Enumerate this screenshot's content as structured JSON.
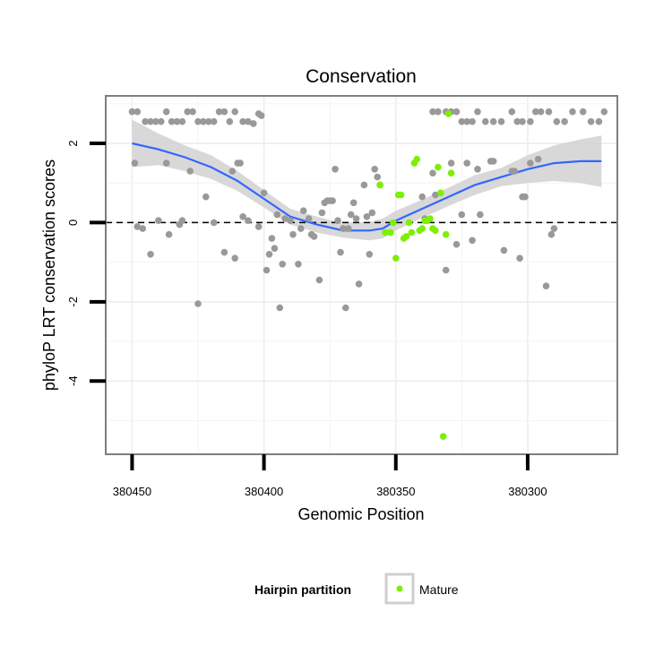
{
  "chart_data": {
    "type": "scatter",
    "title": "Conservation",
    "xlabel": "Genomic Position",
    "ylabel": "phyloP LRT conservation scores",
    "x_reversed": true,
    "xlim": [
      380460,
      380266
    ],
    "ylim": [
      -5.85,
      3.2
    ],
    "x_ticks": [
      380450,
      380400,
      380350,
      380300
    ],
    "x_tick_labels": [
      "380450",
      "380400",
      "380350",
      "380300"
    ],
    "y_ticks": [
      2,
      0,
      -2,
      -4
    ],
    "y_tick_labels": [
      "2",
      "0",
      "-2",
      "-4"
    ],
    "grid": true,
    "reference_line": {
      "y": 0,
      "style": "dashed"
    },
    "legend": {
      "title": "Hairpin partition",
      "position": "bottom",
      "entries": [
        {
          "name": "Mature",
          "color": "#7cf000"
        }
      ]
    },
    "colors": {
      "other": "#999999",
      "mature": "#7cf000",
      "smooth": "#3366ff",
      "ribbon": "#d4d4d4"
    },
    "series": [
      {
        "name": "",
        "color": "#999999",
        "points": [
          [
            380450,
            2.8
          ],
          [
            380448,
            2.8
          ],
          [
            380445,
            2.55
          ],
          [
            380443,
            2.55
          ],
          [
            380441,
            2.55
          ],
          [
            380439,
            2.55
          ],
          [
            380437,
            2.8
          ],
          [
            380435,
            2.55
          ],
          [
            380433,
            2.55
          ],
          [
            380431,
            2.55
          ],
          [
            380429,
            2.8
          ],
          [
            380427,
            2.8
          ],
          [
            380425,
            2.55
          ],
          [
            380423,
            2.55
          ],
          [
            380421,
            2.55
          ],
          [
            380419,
            2.55
          ],
          [
            380417,
            2.8
          ],
          [
            380415,
            2.8
          ],
          [
            380413,
            2.55
          ],
          [
            380411,
            2.8
          ],
          [
            380408,
            2.55
          ],
          [
            380406,
            2.55
          ],
          [
            380404,
            2.5
          ],
          [
            380402,
            2.75
          ],
          [
            380401,
            2.7
          ],
          [
            380336,
            2.8
          ],
          [
            380334,
            2.8
          ],
          [
            380331,
            2.8
          ],
          [
            380329,
            2.8
          ],
          [
            380327,
            2.8
          ],
          [
            380325,
            2.55
          ],
          [
            380323,
            2.55
          ],
          [
            380321,
            2.55
          ],
          [
            380319,
            2.8
          ],
          [
            380316,
            2.55
          ],
          [
            380313,
            2.55
          ],
          [
            380310,
            2.55
          ],
          [
            380306,
            2.8
          ],
          [
            380304,
            2.55
          ],
          [
            380302,
            2.55
          ],
          [
            380299,
            2.55
          ],
          [
            380297,
            2.8
          ],
          [
            380295,
            2.8
          ],
          [
            380292,
            2.8
          ],
          [
            380289,
            2.55
          ],
          [
            380286,
            2.55
          ],
          [
            380283,
            2.8
          ],
          [
            380279,
            2.8
          ],
          [
            380276,
            2.55
          ],
          [
            380273,
            2.55
          ],
          [
            380271,
            2.8
          ],
          [
            380449,
            1.5
          ],
          [
            380448,
            -0.1
          ],
          [
            380446,
            -0.15
          ],
          [
            380443,
            -0.8
          ],
          [
            380440,
            0.05
          ],
          [
            380437,
            1.5
          ],
          [
            380436,
            -0.3
          ],
          [
            380432,
            -0.05
          ],
          [
            380431,
            0.05
          ],
          [
            380428,
            1.3
          ],
          [
            380425,
            -2.05
          ],
          [
            380422,
            0.65
          ],
          [
            380419,
            0.0
          ],
          [
            380415,
            -0.75
          ],
          [
            380412,
            1.3
          ],
          [
            380411,
            -0.9
          ],
          [
            380410,
            1.5
          ],
          [
            380409,
            1.5
          ],
          [
            380408,
            0.15
          ],
          [
            380406,
            0.05
          ],
          [
            380402,
            -0.1
          ],
          [
            380400,
            0.75
          ],
          [
            380399,
            -1.2
          ],
          [
            380398,
            -0.8
          ],
          [
            380397,
            -0.4
          ],
          [
            380396,
            -0.65
          ],
          [
            380395,
            0.2
          ],
          [
            380394,
            -2.15
          ],
          [
            380393,
            -1.05
          ],
          [
            380392,
            0.1
          ],
          [
            380390,
            0.05
          ],
          [
            380389,
            -0.3
          ],
          [
            380387,
            -1.05
          ],
          [
            380386,
            -0.15
          ],
          [
            380385,
            0.3
          ],
          [
            380383,
            0.1
          ],
          [
            380382,
            -0.3
          ],
          [
            380381,
            -0.35
          ],
          [
            380379,
            -1.45
          ],
          [
            380378,
            0.25
          ],
          [
            380377,
            0.5
          ],
          [
            380376,
            0.55
          ],
          [
            380375,
            0.55
          ],
          [
            380374,
            0.55
          ],
          [
            380373,
            1.35
          ],
          [
            380372,
            0.05
          ],
          [
            380371,
            -0.75
          ],
          [
            380370,
            -0.15
          ],
          [
            380369,
            -2.15
          ],
          [
            380368,
            -0.15
          ],
          [
            380367,
            0.2
          ],
          [
            380366,
            0.5
          ],
          [
            380365,
            0.1
          ],
          [
            380364,
            -1.55
          ],
          [
            380362,
            0.95
          ],
          [
            380361,
            0.15
          ],
          [
            380360,
            -0.8
          ],
          [
            380359,
            0.25
          ],
          [
            380358,
            1.35
          ],
          [
            380357,
            1.15
          ],
          [
            380356,
            0.95
          ],
          [
            380340,
            0.65
          ],
          [
            380339,
            0.1
          ],
          [
            380336,
            1.25
          ],
          [
            380335,
            0.7
          ],
          [
            380331,
            -1.2
          ],
          [
            380329,
            1.5
          ],
          [
            380327,
            -0.55
          ],
          [
            380325,
            0.2
          ],
          [
            380323,
            1.5
          ],
          [
            380321,
            -0.45
          ],
          [
            380319,
            1.35
          ],
          [
            380318,
            0.2
          ],
          [
            380314,
            1.55
          ],
          [
            380313,
            1.55
          ],
          [
            380309,
            -0.7
          ],
          [
            380306,
            1.3
          ],
          [
            380305,
            1.3
          ],
          [
            380303,
            -0.9
          ],
          [
            380302,
            0.65
          ],
          [
            380301,
            0.65
          ],
          [
            380299,
            1.5
          ],
          [
            380296,
            1.6
          ],
          [
            380293,
            -1.6
          ],
          [
            380291,
            -0.3
          ],
          [
            380290,
            -0.15
          ]
        ]
      },
      {
        "name": "Mature",
        "color": "#7cf000",
        "points": [
          [
            380356,
            0.95
          ],
          [
            380354,
            -0.25
          ],
          [
            380352,
            -0.25
          ],
          [
            380351,
            0.0
          ],
          [
            380350,
            -0.9
          ],
          [
            380349,
            0.7
          ],
          [
            380348,
            0.7
          ],
          [
            380347,
            -0.4
          ],
          [
            380346,
            -0.35
          ],
          [
            380345,
            0.0
          ],
          [
            380344,
            -0.25
          ],
          [
            380343,
            1.5
          ],
          [
            380342,
            1.6
          ],
          [
            380341,
            -0.2
          ],
          [
            380340,
            -0.15
          ],
          [
            380339,
            0.05
          ],
          [
            380338,
            0.05
          ],
          [
            380337,
            0.1
          ],
          [
            380336,
            -0.15
          ],
          [
            380335,
            -0.2
          ],
          [
            380334,
            1.4
          ],
          [
            380333,
            0.75
          ],
          [
            380332,
            -5.4
          ],
          [
            380331,
            -0.3
          ],
          [
            380330,
            2.75
          ],
          [
            380329,
            1.25
          ]
        ]
      }
    ],
    "smooth": {
      "x": [
        380450,
        380440,
        380430,
        380420,
        380410,
        380400,
        380390,
        380380,
        380370,
        380360,
        380355,
        380350,
        380340,
        380330,
        380320,
        380310,
        380300,
        380290,
        380280,
        380272
      ],
      "y": [
        2.0,
        1.85,
        1.65,
        1.4,
        1.05,
        0.6,
        0.15,
        -0.05,
        -0.2,
        -0.2,
        -0.15,
        0.05,
        0.35,
        0.65,
        0.95,
        1.15,
        1.35,
        1.5,
        1.55,
        1.55
      ],
      "lower": [
        1.4,
        1.45,
        1.3,
        1.1,
        0.8,
        0.38,
        -0.05,
        -0.25,
        -0.38,
        -0.45,
        -0.4,
        -0.2,
        0.12,
        0.42,
        0.7,
        0.92,
        1.0,
        1.05,
        1.0,
        0.9
      ],
      "upper": [
        2.6,
        2.25,
        1.95,
        1.7,
        1.3,
        0.82,
        0.35,
        0.15,
        -0.02,
        0.02,
        0.1,
        0.3,
        0.58,
        0.88,
        1.2,
        1.38,
        1.7,
        1.95,
        2.1,
        2.2
      ]
    }
  }
}
